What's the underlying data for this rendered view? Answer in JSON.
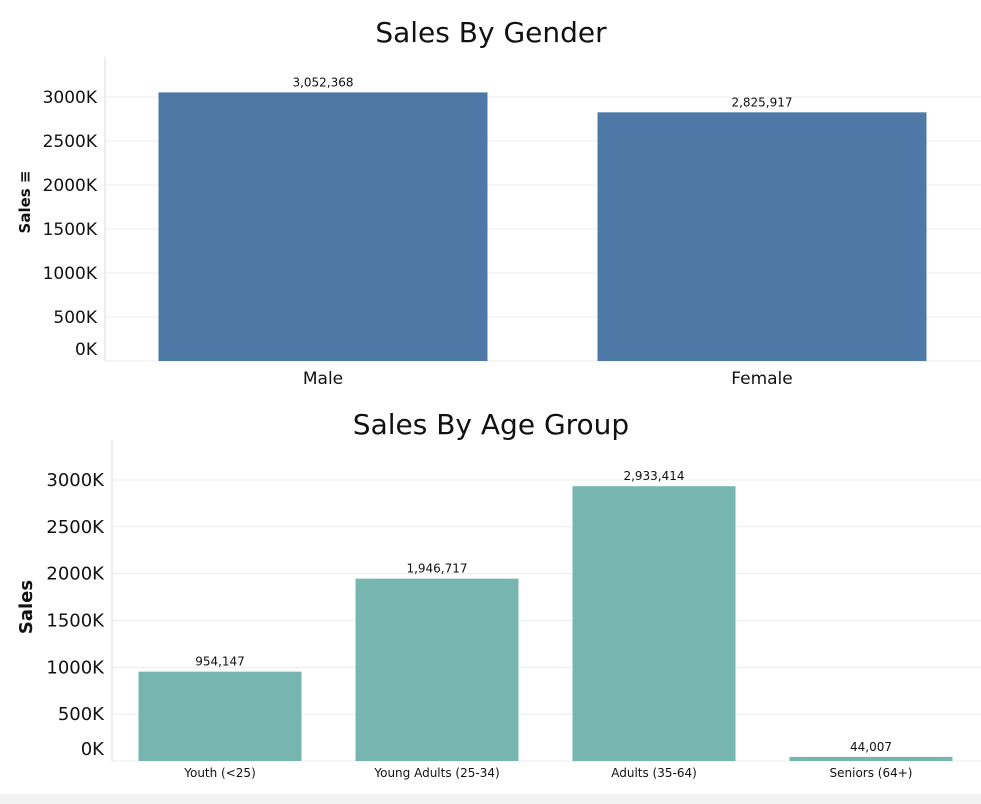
{
  "chart_data": [
    {
      "type": "bar",
      "title": "Sales By Gender",
      "xlabel": "",
      "ylabel": "Sales",
      "ylabel_suffix": "≡",
      "categories": [
        "Male",
        "Female"
      ],
      "values": [
        3052368,
        2825917
      ],
      "value_labels": [
        "3,052,368",
        "2,825,917"
      ],
      "yticks": [
        "0K",
        "500K",
        "1000K",
        "1500K",
        "2000K",
        "2500K",
        "3000K"
      ],
      "ylim": [
        0,
        3000000
      ],
      "grid": true,
      "bar_color": "#4e79a7"
    },
    {
      "type": "bar",
      "title": "Sales By Age Group",
      "xlabel": "",
      "ylabel": "Sales",
      "categories": [
        "Youth (<25)",
        "Young Adults (25-34)",
        "Adults (35-64)",
        "Seniors (64+)"
      ],
      "values": [
        954147,
        1946717,
        2933414,
        44007
      ],
      "value_labels": [
        "954,147",
        "1,946,717",
        "2,933,414",
        "44,007"
      ],
      "yticks": [
        "0K",
        "500K",
        "1000K",
        "1500K",
        "2000K",
        "2500K",
        "3000K"
      ],
      "ylim": [
        0,
        3000000
      ],
      "grid": true,
      "bar_color": "#76b5b0"
    }
  ]
}
